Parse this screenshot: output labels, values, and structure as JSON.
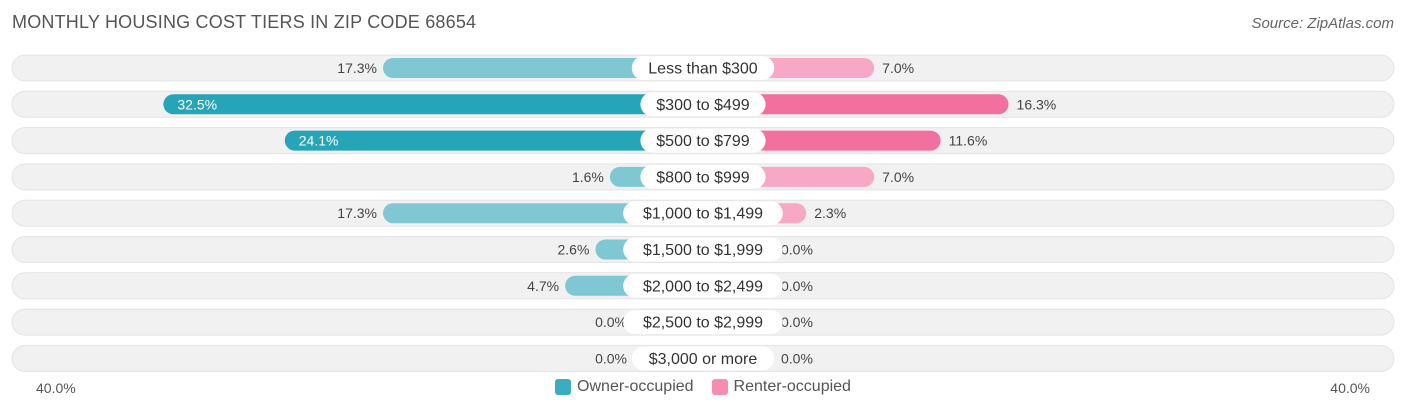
{
  "title": "MONTHLY HOUSING COST TIERS IN ZIP CODE 68654",
  "source": "Source: ZipAtlas.com",
  "colors": {
    "owner": "#3aaec0",
    "owner_strong": "#26a5b8",
    "renter": "#f48db1",
    "renter_strong": "#f2709e",
    "row_bg": "#f1f1f1"
  },
  "chart_data": {
    "type": "bar",
    "orientation": "horizontal-diverging",
    "categories": [
      "Less than $300",
      "$300 to $499",
      "$500 to $799",
      "$800 to $999",
      "$1,000 to $1,499",
      "$1,500 to $1,999",
      "$2,000 to $2,499",
      "$2,500 to $2,999",
      "$3,000 or more"
    ],
    "series": [
      {
        "name": "Owner-occupied",
        "values": [
          17.3,
          32.5,
          24.1,
          1.6,
          17.3,
          2.6,
          4.7,
          0.0,
          0.0
        ]
      },
      {
        "name": "Renter-occupied",
        "values": [
          7.0,
          16.3,
          11.6,
          7.0,
          2.3,
          0.0,
          0.0,
          0.0,
          0.0
        ]
      }
    ],
    "value_labels": {
      "owner": [
        "17.3%",
        "32.5%",
        "24.1%",
        "1.6%",
        "17.3%",
        "2.6%",
        "4.7%",
        "0.0%",
        "0.0%"
      ],
      "renter": [
        "7.0%",
        "16.3%",
        "11.6%",
        "7.0%",
        "2.3%",
        "0.0%",
        "0.0%",
        "0.0%",
        "0.0%"
      ]
    },
    "xlim": [
      -40,
      40
    ],
    "axis_labels": {
      "left": "40.0%",
      "right": "40.0%"
    },
    "legend_position": "bottom-center"
  }
}
